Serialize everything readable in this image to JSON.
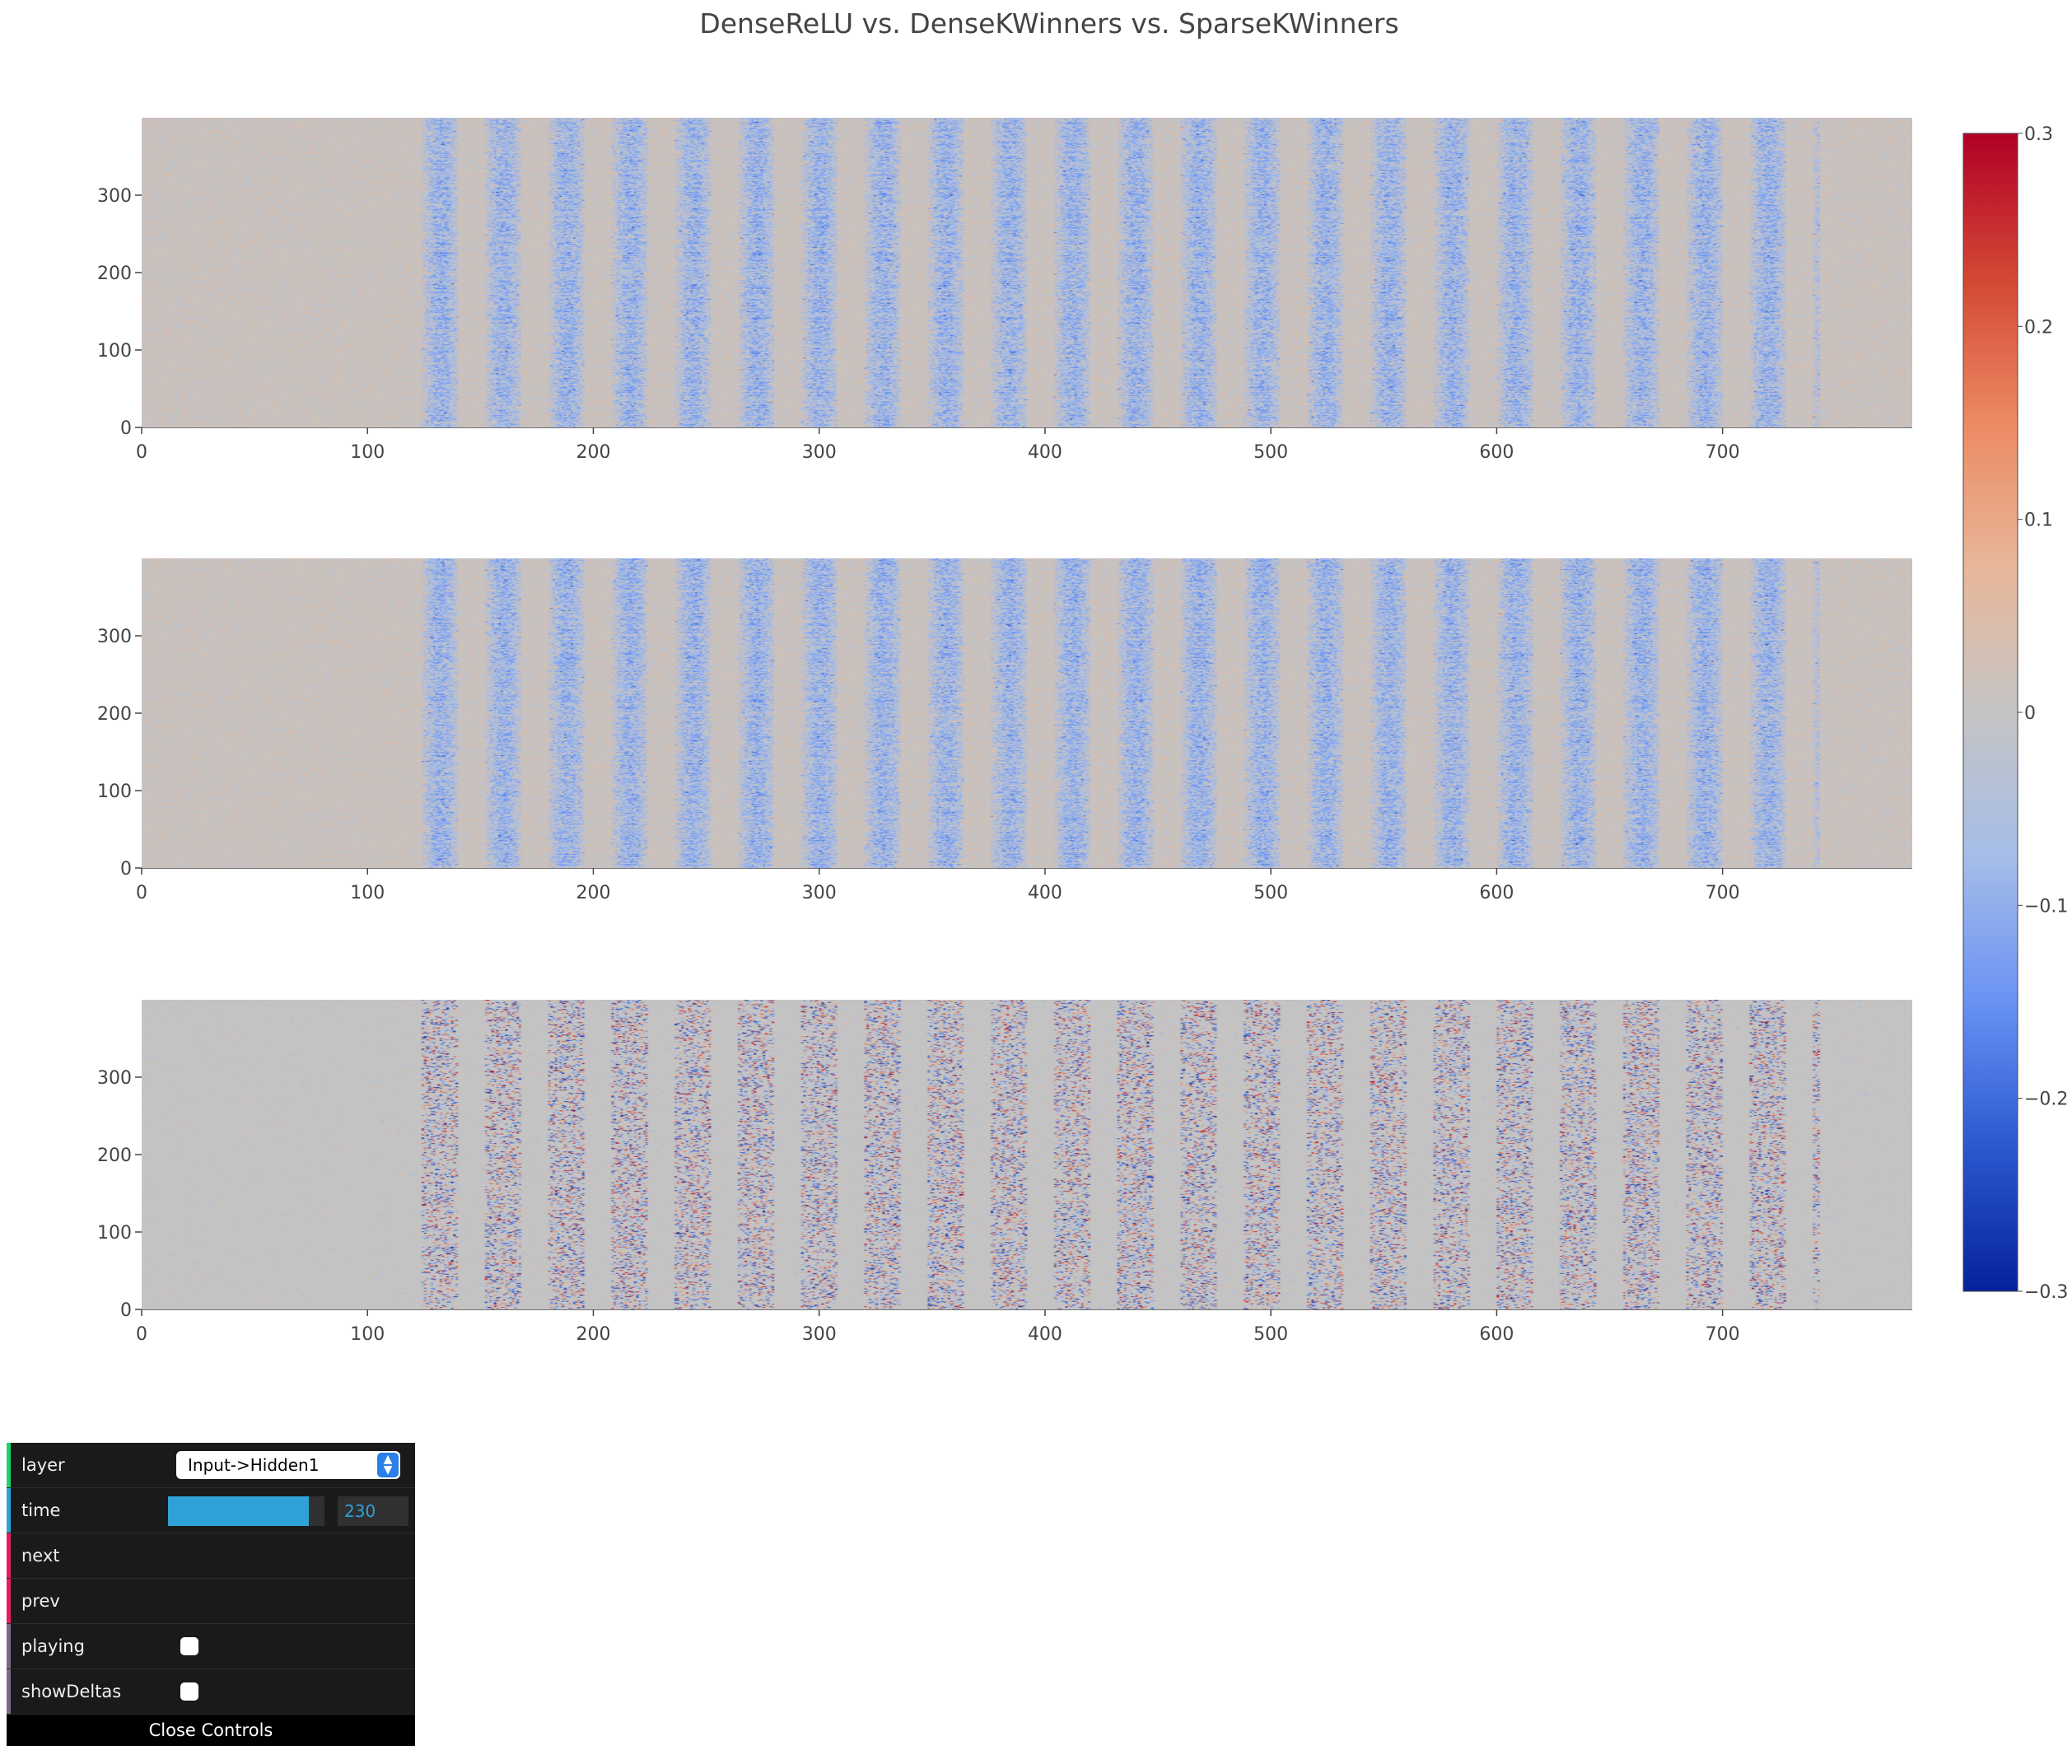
{
  "chart_data": {
    "type": "heatmap",
    "title": "DenseReLU vs. DenseKWinners vs. SparseKWinners",
    "colorscale": {
      "name": "coolwarm",
      "min": -0.3,
      "max": 0.3,
      "colors": [
        "#05229a",
        "#2c58cf",
        "#6992f4",
        "#a6bde8",
        "#c4c4c4",
        "#e8b79a",
        "#ec8a63",
        "#d34734",
        "#b00026"
      ],
      "ticks": [
        0.3,
        0.2,
        0.1,
        0,
        -0.1,
        -0.2,
        -0.3
      ],
      "tick_labels": [
        "0.3",
        "0.2",
        "0.1",
        "0",
        "−0.1",
        "−0.2",
        "−0.3"
      ]
    },
    "panels": [
      {
        "name": "DenseReLU",
        "x_range": [
          0,
          784
        ],
        "y_range": [
          0,
          400
        ],
        "x_ticks": [
          0,
          100,
          200,
          300,
          400,
          500,
          600,
          700
        ],
        "x_tick_labels": [
          "0",
          "100",
          "200",
          "300",
          "400",
          "500",
          "600",
          "700"
        ],
        "y_ticks": [
          0,
          100,
          200,
          300
        ],
        "y_tick_labels": [
          "0",
          "100",
          "200",
          "300"
        ],
        "pattern": "dense",
        "description_values": {
          "band_period_columns": 28,
          "band_first_column": 126,
          "band_last_column": 742,
          "value_range": [
            -0.3,
            0.3
          ]
        }
      },
      {
        "name": "DenseKWinners",
        "x_range": [
          0,
          784
        ],
        "y_range": [
          0,
          400
        ],
        "x_ticks": [
          0,
          100,
          200,
          300,
          400,
          500,
          600,
          700
        ],
        "x_tick_labels": [
          "0",
          "100",
          "200",
          "300",
          "400",
          "500",
          "600",
          "700"
        ],
        "y_ticks": [
          0,
          100,
          200,
          300
        ],
        "y_tick_labels": [
          "0",
          "100",
          "200",
          "300"
        ],
        "pattern": "dense",
        "description_values": {
          "band_period_columns": 28,
          "band_first_column": 126,
          "band_last_column": 742,
          "value_range": [
            -0.3,
            0.3
          ]
        }
      },
      {
        "name": "SparseKWinners",
        "x_range": [
          0,
          784
        ],
        "y_range": [
          0,
          400
        ],
        "x_ticks": [
          0,
          100,
          200,
          300,
          400,
          500,
          600,
          700
        ],
        "x_tick_labels": [
          "0",
          "100",
          "200",
          "300",
          "400",
          "500",
          "600",
          "700"
        ],
        "y_ticks": [
          0,
          100,
          200,
          300
        ],
        "y_tick_labels": [
          "0",
          "100",
          "200",
          "300"
        ],
        "pattern": "sparse",
        "description_values": {
          "band_period_columns": 28,
          "band_first_column": 126,
          "band_last_column": 742,
          "value_range": [
            -0.3,
            0.3
          ]
        }
      }
    ]
  },
  "controls": {
    "layer": {
      "label": "layer",
      "value": "Input->Hidden1",
      "stripe": "#1ed36f"
    },
    "time": {
      "label": "time",
      "value": "230",
      "fraction": 0.9,
      "stripe": "#2fa1d6"
    },
    "next": {
      "label": "next",
      "stripe": "#e61d5f"
    },
    "prev": {
      "label": "prev",
      "stripe": "#e61d5f"
    },
    "playing": {
      "label": "playing",
      "checked": false,
      "stripe": "#806787"
    },
    "showDeltas": {
      "label": "showDeltas",
      "checked": false,
      "stripe": "#806787"
    },
    "close_label": "Close Controls"
  }
}
